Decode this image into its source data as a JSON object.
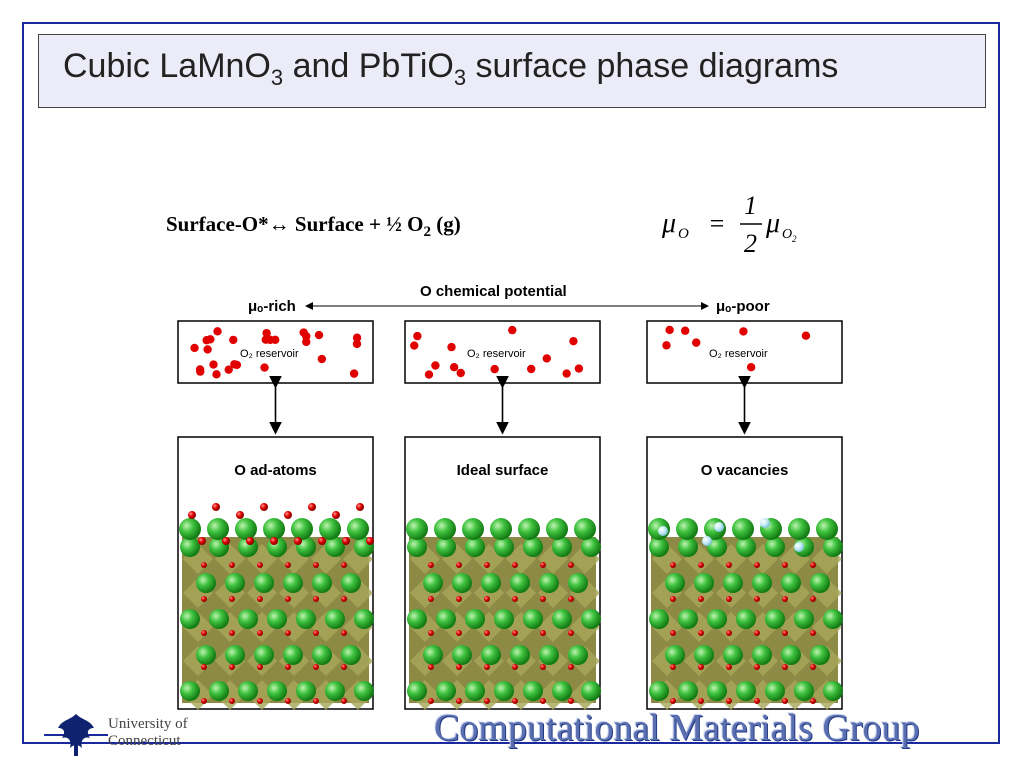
{
  "title": {
    "prefix": "Cubic LaMnO",
    "sub1": "3",
    "mid": " and PbTiO",
    "sub2": "3",
    "suffix": " surface phase diagrams"
  },
  "reaction": {
    "left": "Surface-O*↔ Surface + ½ O",
    "sub": "2",
    "right": " (g)"
  },
  "equation": {
    "lhs": "μ",
    "lhs_sub": "O",
    "equals": "=",
    "num": "1",
    "den": "2",
    "rhs": "μ",
    "rhs_sub": "O",
    "rhs_subsub": "2"
  },
  "diagram": {
    "axis_label": "O chemical potential",
    "left_label": "μₒ-rich",
    "right_label": "μₒ-poor",
    "reservoir_label": "O₂ reservoir",
    "panels": [
      "O ad-atoms",
      "Ideal surface",
      "O vacancies"
    ]
  },
  "footer": {
    "university_line1": "University of",
    "university_line2": "Connecticut",
    "group": "Computational Materials Group"
  },
  "colors": {
    "frame": "#1a2a9e",
    "title_bg": "#ececf8",
    "oxygen": "#e00000",
    "cation": "#3fc23f",
    "vacancy": "#bfe8f5",
    "group_text": "#5a6fb0"
  }
}
